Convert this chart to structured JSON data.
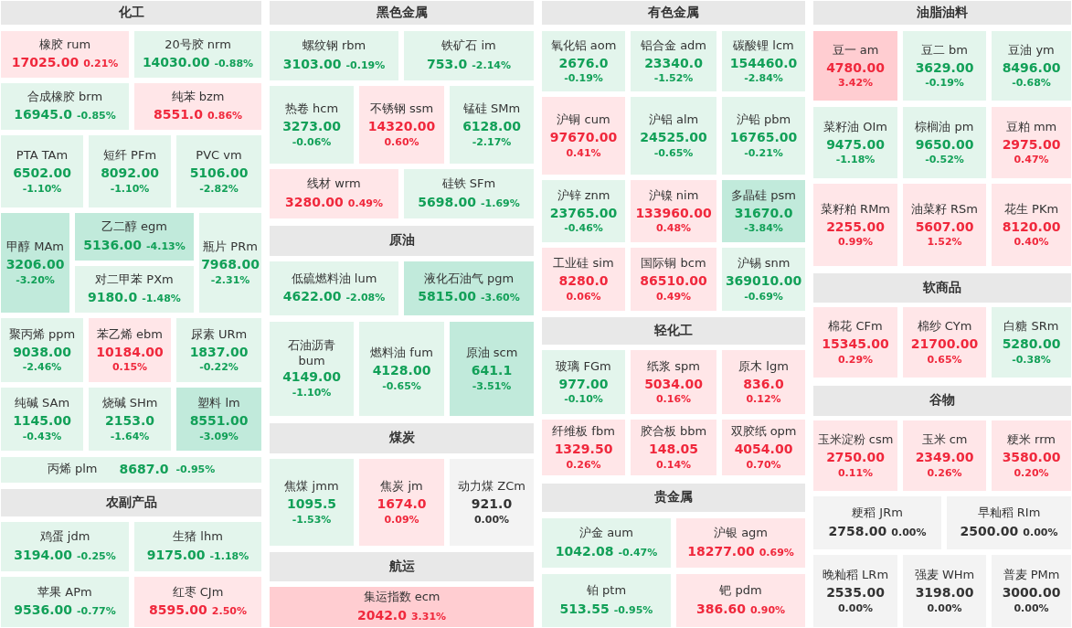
{
  "chart_data": {
    "type": "other",
    "annotations": [
      "化工",
      "农副产品",
      "黑色金属",
      "原油",
      "煤炭",
      "航运",
      "有色金属",
      "轻化工",
      "贵金属",
      "油脂油料",
      "软商品",
      "谷物"
    ],
    "categories": [
      "橡胶 rum",
      "20号胶 nrm",
      "合成橡胶 brm",
      "纯苯 bzm",
      "PTA TAm",
      "短纤 PFm",
      "PVC vm",
      "甲醇 MAm",
      "乙二醇 egm",
      "对二甲苯 PXm",
      "瓶片 PRm",
      "聚丙烯 ppm",
      "苯乙烯 ebm",
      "尿素 URm",
      "纯碱 SAm",
      "烧碱 SHm",
      "塑料 lm",
      "丙烯 plm",
      "鸡蛋 jdm",
      "生猪 lhm",
      "苹果 APm",
      "红枣 CJm",
      "螺纹钢 rbm",
      "铁矿石 im",
      "热卷 hcm",
      "不锈钢 ssm",
      "锰硅 SMm",
      "线材 wrm",
      "硅铁 SFm",
      "低硫燃料油 lum",
      "液化石油气 pgm",
      "石油沥青 bum",
      "燃料油 fum",
      "原油 scm",
      "焦煤 jmm",
      "焦炭 jm",
      "动力煤 ZCm",
      "集运指数 ecm",
      "氧化铝 aom",
      "铝合金 adm",
      "碳酸锂 lcm",
      "沪铜 cum",
      "沪铝 alm",
      "沪铅 pbm",
      "沪锌 znm",
      "沪镍 nim",
      "多晶硅 psm",
      "工业硅 sim",
      "国际铜 bcm",
      "沪锡 snm",
      "玻璃 FGm",
      "纸浆 spm",
      "原木 lgm",
      "纤维板 fbm",
      "胶合板 bbm",
      "双胶纸 opm",
      "沪金 aum",
      "沪银 agm",
      "铂 ptm",
      "钯 pdm",
      "豆一 am",
      "豆二 bm",
      "豆油 ym",
      "菜籽油 OIm",
      "棕榈油 pm",
      "豆粕 mm",
      "菜籽粕 RMm",
      "油菜籽 RSm",
      "花生 PKm",
      "棉花 CFm",
      "棉纱 CYm",
      "白糖 SRm",
      "玉米淀粉 csm",
      "玉米 cm",
      "粳米 rrm",
      "粳稻 JRm",
      "早籼稻 RIm",
      "晚籼稻 LRm",
      "强麦 WHm",
      "普麦 PMm"
    ],
    "series": [
      {
        "values": [
          17025,
          14030,
          16945,
          8551,
          6502,
          8092,
          5106,
          3206,
          5136,
          9180,
          7968,
          9038,
          10184,
          1837,
          1145,
          2153,
          8551,
          8687,
          3194,
          9175,
          9536,
          8595,
          3103,
          753,
          3273,
          14320,
          6128,
          3280,
          5698,
          4622,
          5815,
          4149,
          4128,
          641.1,
          1095.5,
          1674,
          921,
          2042,
          2676,
          23340,
          154460,
          97670,
          24525,
          16765,
          23765,
          133960,
          31670,
          8280,
          86510,
          369010,
          977,
          5034,
          836,
          1329.5,
          148.05,
          4054,
          1042.08,
          18277,
          513.55,
          386.6,
          4780,
          3629,
          8496,
          9475,
          9650,
          2975,
          2255,
          5607,
          8120,
          15345,
          21700,
          5280,
          2750,
          2349,
          3580,
          2758,
          2500,
          2535,
          3198,
          3000
        ],
        "colors": [
          "#ffe6e8",
          "#e3f5ec",
          "#e3f5ec",
          "#ffe6e8",
          "#e3f5ec",
          "#e3f5ec",
          "#e3f5ec",
          "#c1eadb",
          "#c1eadb",
          "#e3f5ec",
          "#e3f5ec",
          "#e3f5ec",
          "#ffe6e8",
          "#e3f5ec",
          "#e3f5ec",
          "#e3f5ec",
          "#c1eadb",
          "#e3f5ec",
          "#e3f5ec",
          "#e3f5ec",
          "#e3f5ec",
          "#ffe6e8",
          "#e3f5ec",
          "#e3f5ec",
          "#e3f5ec",
          "#ffe6e8",
          "#e3f5ec",
          "#ffe6e8",
          "#e3f5ec",
          "#e3f5ec",
          "#c1eadb",
          "#e3f5ec",
          "#e3f5ec",
          "#c1eadb",
          "#e3f5ec",
          "#ffe6e8",
          "#f3f3f3",
          "#ffcdd1",
          "#e3f5ec",
          "#e3f5ec",
          "#e3f5ec",
          "#ffe6e8",
          "#e3f5ec",
          "#e3f5ec",
          "#e3f5ec",
          "#ffe6e8",
          "#c1eadb",
          "#ffe6e8",
          "#ffe6e8",
          "#e3f5ec",
          "#e3f5ec",
          "#ffe6e8",
          "#ffe6e8",
          "#ffe6e8",
          "#ffe6e8",
          "#ffe6e8",
          "#e3f5ec",
          "#ffe6e8",
          "#e3f5ec",
          "#ffe6e8",
          "#ffcdd1",
          "#e3f5ec",
          "#e3f5ec",
          "#e3f5ec",
          "#e3f5ec",
          "#ffe6e8",
          "#ffe6e8",
          "#ffe6e8",
          "#ffe6e8",
          "#ffe6e8",
          "#ffe6e8",
          "#e3f5ec",
          "#ffe6e8",
          "#ffe6e8",
          "#ffe6e8",
          "#f3f3f3",
          "#f3f3f3",
          "#f3f3f3",
          "#f3f3f3",
          "#f3f3f3"
        ],
        "value_labels": [
          "17025.00",
          "14030.00",
          "16945.0",
          "8551.0",
          "6502.00",
          "8092.00",
          "5106.00",
          "3206.00",
          "5136.00",
          "9180.0",
          "7968.00",
          "9038.00",
          "10184.00",
          "1837.00",
          "1145.00",
          "2153.0",
          "8551.00",
          "8687.0",
          "3194.00",
          "9175.00",
          "9536.00",
          "8595.00",
          "3103.00",
          "753.0",
          "3273.00",
          "14320.00",
          "6128.00",
          "3280.00",
          "5698.00",
          "4622.00",
          "5815.00",
          "4149.00",
          "4128.00",
          "641.1",
          "1095.5",
          "1674.0",
          "921.0",
          "2042.0",
          "2676.0",
          "23340.0",
          "154460.0",
          "97670.00",
          "24525.00",
          "16765.00",
          "23765.00",
          "133960.00",
          "31670.0",
          "8280.0",
          "86510.00",
          "369010.00",
          "977.00",
          "5034.00",
          "836.0",
          "1329.50",
          "148.05",
          "4054.00",
          "1042.08",
          "18277.00",
          "513.55",
          "386.60",
          "4780.00",
          "3629.00",
          "8496.00",
          "9475.00",
          "9650.00",
          "2975.00",
          "2255.00",
          "5607.00",
          "8120.00",
          "15345.00",
          "21700.00",
          "5280.00",
          "2750.00",
          "2349.00",
          "3580.00",
          "2758.00",
          "2500.00",
          "2535.00",
          "3198.00",
          "3000.00"
        ]
      },
      {
        "values": [
          0.21,
          -0.88,
          -0.85,
          0.86,
          -1.1,
          -1.1,
          -2.82,
          -3.2,
          -4.13,
          -1.48,
          -2.31,
          -2.46,
          0.15,
          -0.22,
          -0.43,
          -1.64,
          -3.09,
          -0.95,
          -0.25,
          -1.18,
          -0.77,
          2.5,
          -0.19,
          -2.14,
          -0.06,
          0.6,
          -2.17,
          0.49,
          -1.69,
          -2.08,
          -3.6,
          -1.1,
          -0.65,
          -3.51,
          -1.53,
          0.09,
          0,
          3.31,
          -0.19,
          -1.52,
          -2.84,
          0.41,
          -0.65,
          -0.21,
          -0.46,
          0.48,
          -3.84,
          0.06,
          0.49,
          -0.69,
          -0.1,
          0.16,
          0.12,
          0.26,
          0.14,
          0.7,
          -0.47,
          0.69,
          -0.95,
          0.9,
          3.42,
          -0.19,
          -0.68,
          -1.18,
          -0.52,
          0.47,
          0.99,
          1.52,
          0.4,
          0.29,
          0.65,
          -0.38,
          0.11,
          0.26,
          0.2,
          0,
          0,
          0,
          0,
          0
        ],
        "colors": [
          "#f0283c",
          "#12a058",
          "#12a058",
          "#f0283c",
          "#12a058",
          "#12a058",
          "#12a058",
          "#12a058",
          "#12a058",
          "#12a058",
          "#12a058",
          "#12a058",
          "#f0283c",
          "#12a058",
          "#12a058",
          "#12a058",
          "#12a058",
          "#12a058",
          "#12a058",
          "#12a058",
          "#12a058",
          "#f0283c",
          "#12a058",
          "#12a058",
          "#12a058",
          "#f0283c",
          "#12a058",
          "#f0283c",
          "#12a058",
          "#12a058",
          "#12a058",
          "#12a058",
          "#12a058",
          "#12a058",
          "#12a058",
          "#f0283c",
          "#333333",
          "#f0283c",
          "#12a058",
          "#12a058",
          "#12a058",
          "#f0283c",
          "#12a058",
          "#12a058",
          "#12a058",
          "#f0283c",
          "#12a058",
          "#f0283c",
          "#f0283c",
          "#12a058",
          "#12a058",
          "#f0283c",
          "#f0283c",
          "#f0283c",
          "#f0283c",
          "#f0283c",
          "#12a058",
          "#f0283c",
          "#12a058",
          "#f0283c",
          "#f0283c",
          "#12a058",
          "#12a058",
          "#12a058",
          "#12a058",
          "#f0283c",
          "#f0283c",
          "#f0283c",
          "#f0283c",
          "#f0283c",
          "#f0283c",
          "#12a058",
          "#f0283c",
          "#f0283c",
          "#f0283c",
          "#333333",
          "#333333",
          "#333333",
          "#333333",
          "#333333"
        ],
        "value_labels": [
          "0.21%",
          "-0.88%",
          "-0.85%",
          "0.86%",
          "-1.10%",
          "-1.10%",
          "-2.82%",
          "-3.20%",
          "-4.13%",
          "-1.48%",
          "-2.31%",
          "-2.46%",
          "0.15%",
          "-0.22%",
          "-0.43%",
          "-1.64%",
          "-3.09%",
          "-0.95%",
          "-0.25%",
          "-1.18%",
          "-0.77%",
          "2.50%",
          "-0.19%",
          "-2.14%",
          "-0.06%",
          "0.60%",
          "-2.17%",
          "0.49%",
          "-1.69%",
          "-2.08%",
          "-3.60%",
          "-1.10%",
          "-0.65%",
          "-3.51%",
          "-1.53%",
          "0.09%",
          "0.00%",
          "3.31%",
          "-0.19%",
          "-1.52%",
          "-2.84%",
          "0.41%",
          "-0.65%",
          "-0.21%",
          "-0.46%",
          "0.48%",
          "-3.84%",
          "0.06%",
          "0.49%",
          "-0.69%",
          "-0.10%",
          "0.16%",
          "0.12%",
          "0.26%",
          "0.14%",
          "0.70%",
          "-0.47%",
          "0.69%",
          "-0.95%",
          "0.90%",
          "3.42%",
          "-0.19%",
          "-0.68%",
          "-1.18%",
          "-0.52%",
          "0.47%",
          "0.99%",
          "1.52%",
          "0.40%",
          "0.29%",
          "0.65%",
          "-0.38%",
          "0.11%",
          "0.26%",
          "0.20%",
          "0.00%",
          "0.00%",
          "0.00%",
          "0.00%",
          "0.00%"
        ]
      }
    ]
  }
}
